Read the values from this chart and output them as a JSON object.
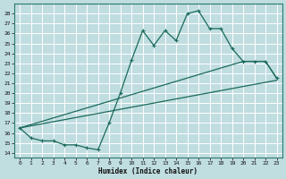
{
  "xlabel": "Humidex (Indice chaleur)",
  "xlim": [
    -0.5,
    23.5
  ],
  "ylim": [
    13.5,
    29
  ],
  "yticks": [
    14,
    15,
    16,
    17,
    18,
    19,
    20,
    21,
    22,
    23,
    24,
    25,
    26,
    27,
    28
  ],
  "xticks": [
    0,
    1,
    2,
    3,
    4,
    5,
    6,
    7,
    8,
    9,
    10,
    11,
    12,
    13,
    14,
    15,
    16,
    17,
    18,
    19,
    20,
    21,
    22,
    23
  ],
  "bg_color": "#c0dde0",
  "grid_color": "#ffffff",
  "line_color": "#1a6b5a",
  "line1_x": [
    0,
    1,
    2,
    3,
    4,
    5,
    6,
    7,
    8,
    9,
    10,
    11,
    12,
    13,
    14,
    15,
    16,
    17,
    18,
    19,
    20,
    21,
    22,
    23
  ],
  "line1_y": [
    16.5,
    15.5,
    15.2,
    15.2,
    14.8,
    14.8,
    14.5,
    14.3,
    17.0,
    20.0,
    23.3,
    26.3,
    24.8,
    26.3,
    25.3,
    28.0,
    28.3,
    26.5,
    26.5,
    24.5,
    23.2,
    23.2,
    23.2,
    21.5
  ],
  "line2_x": [
    0,
    20,
    21,
    22,
    23
  ],
  "line2_y": [
    16.5,
    23.2,
    23.2,
    23.2,
    21.5
  ],
  "line3_x": [
    0,
    23
  ],
  "line3_y": [
    16.5,
    21.3
  ]
}
